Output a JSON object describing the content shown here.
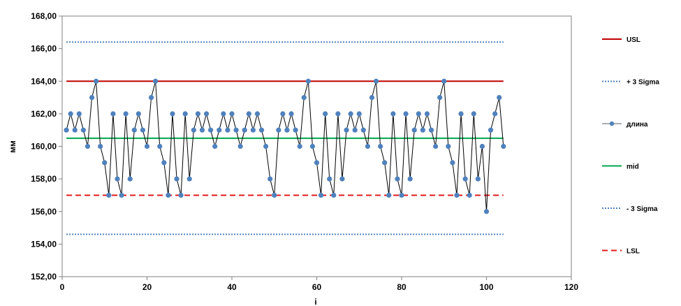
{
  "chart_data": {
    "type": "line",
    "title": "",
    "xlabel": "i",
    "ylabel": "мм",
    "xlim": [
      0,
      120
    ],
    "ylim": [
      152,
      168
    ],
    "x_ticks": [
      "0",
      "20",
      "40",
      "60",
      "80",
      "100",
      "120"
    ],
    "y_ticks": [
      "152,00",
      "154,00",
      "156,00",
      "158,00",
      "160,00",
      "162,00",
      "164,00",
      "166,00",
      "168,00"
    ],
    "grid": false,
    "legend_position": "right",
    "legend": [
      {
        "key": "usl",
        "label": "USL",
        "color": "#c00000",
        "style": "solid"
      },
      {
        "key": "plus3",
        "label": "+ 3 Sigma",
        "color": "#4f81bd",
        "style": "dotted"
      },
      {
        "key": "data",
        "label": "длина",
        "color": "#4f81bd",
        "style": "marker-line"
      },
      {
        "key": "mid",
        "label": "mid",
        "color": "#00a651",
        "style": "solid"
      },
      {
        "key": "minus3",
        "label": "- 3 Sigma",
        "color": "#4f81bd",
        "style": "dotted"
      },
      {
        "key": "lsl",
        "label": "LSL",
        "color": "#e31a1c",
        "style": "dashed"
      }
    ],
    "reference_lines": {
      "usl": 164,
      "plus3": 166.4,
      "mid": 160.5,
      "minus3": 154.6,
      "lsl": 157,
      "x_range": [
        1,
        104
      ]
    },
    "series": [
      {
        "name": "длина",
        "line_color": "#000000",
        "marker_color": "#4f81bd",
        "x": [
          1,
          2,
          3,
          4,
          5,
          6,
          7,
          8,
          9,
          10,
          11,
          12,
          13,
          14,
          15,
          16,
          17,
          18,
          19,
          20,
          21,
          22,
          23,
          24,
          25,
          26,
          27,
          28,
          29,
          30,
          31,
          32,
          33,
          34,
          35,
          36,
          37,
          38,
          39,
          40,
          41,
          42,
          43,
          44,
          45,
          46,
          47,
          48,
          49,
          50,
          51,
          52,
          53,
          54,
          55,
          56,
          57,
          58,
          59,
          60,
          61,
          62,
          63,
          64,
          65,
          66,
          67,
          68,
          69,
          70,
          71,
          72,
          73,
          74,
          75,
          76,
          77,
          78,
          79,
          80,
          81,
          82,
          83,
          84,
          85,
          86,
          87,
          88,
          89,
          90,
          91,
          92,
          93,
          94,
          95,
          96,
          97,
          98,
          99,
          100,
          101,
          102,
          103,
          104
        ],
        "values": [
          161,
          162,
          161,
          162,
          161,
          160,
          163,
          164,
          160,
          159,
          157,
          162,
          158,
          157,
          162,
          158,
          161,
          162,
          161,
          160,
          163,
          164,
          160,
          159,
          157,
          162,
          158,
          157,
          162,
          158,
          161,
          162,
          161,
          162,
          161,
          160,
          161,
          162,
          161,
          162,
          161,
          160,
          161,
          162,
          161,
          162,
          161,
          160,
          158,
          157,
          161,
          162,
          161,
          162,
          161,
          160,
          163,
          164,
          160,
          159,
          157,
          162,
          158,
          157,
          162,
          158,
          161,
          162,
          161,
          162,
          161,
          160,
          163,
          164,
          160,
          159,
          157,
          162,
          158,
          157,
          162,
          158,
          161,
          162,
          161,
          162,
          161,
          160,
          163,
          164,
          160,
          159,
          157,
          162,
          158,
          157,
          162,
          158,
          160,
          156,
          161,
          162,
          163,
          160
        ]
      }
    ]
  }
}
